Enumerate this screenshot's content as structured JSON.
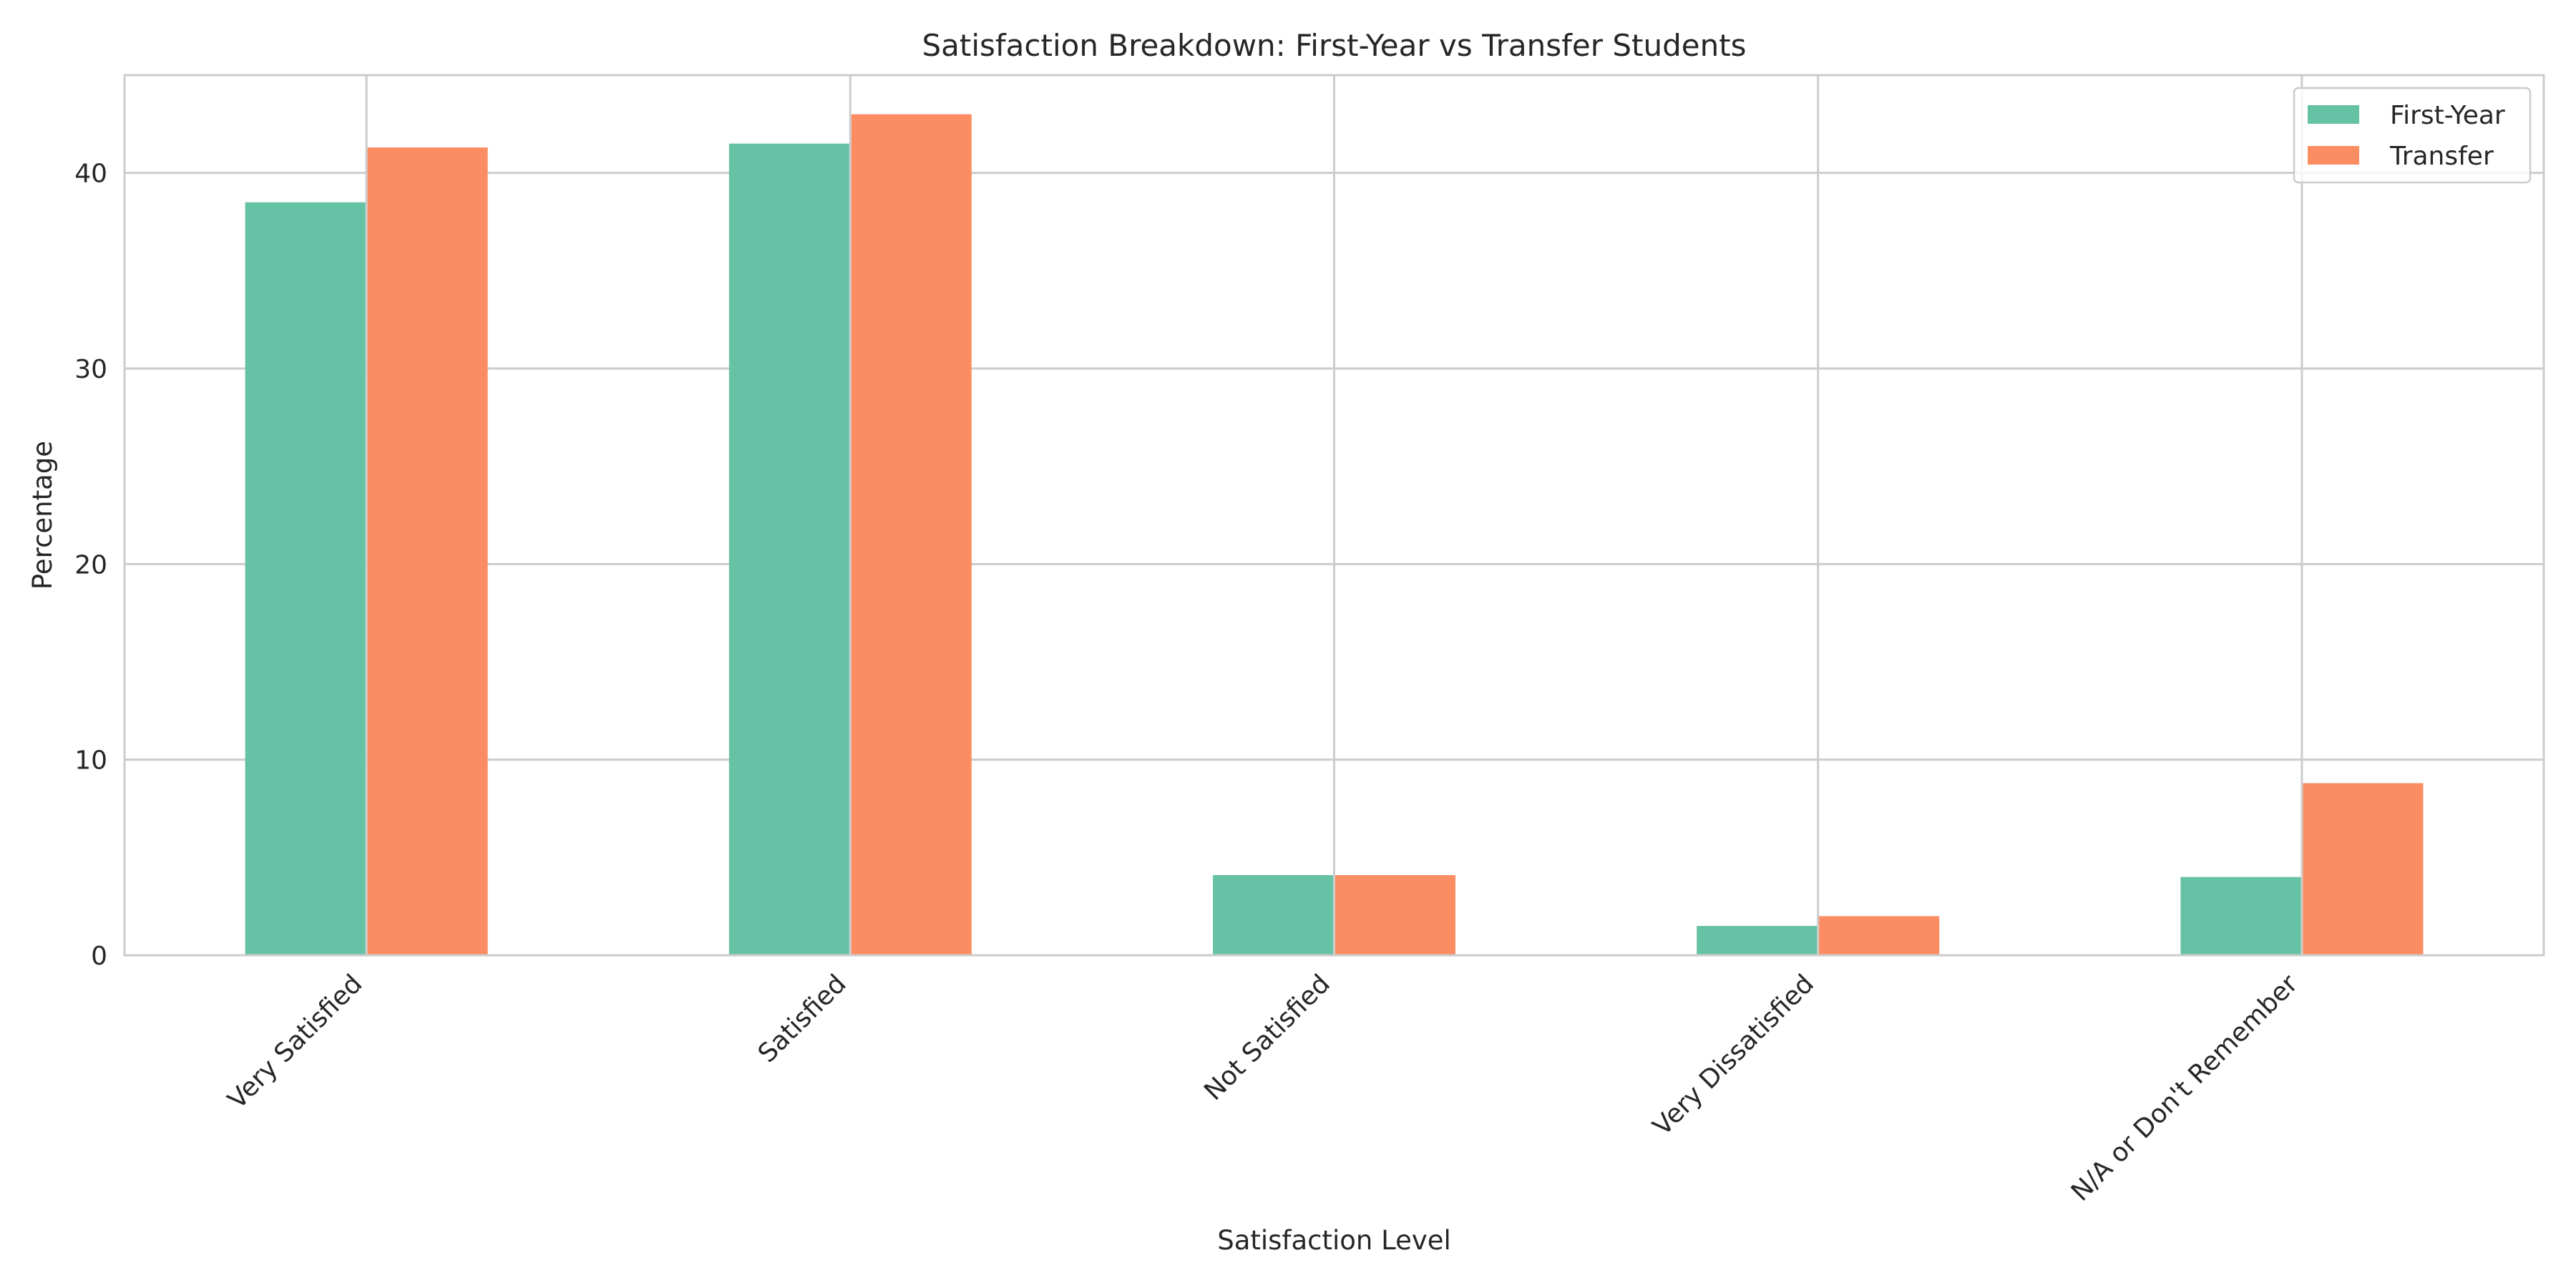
{
  "chart_data": {
    "type": "bar",
    "title": "Satisfaction Breakdown: First-Year vs Transfer Students",
    "xlabel": "Satisfaction Level",
    "ylabel": "Percentage",
    "categories": [
      "Very Satisfied",
      "Satisfied",
      "Not Satisfied",
      "Very Dissatisfied",
      "N/A or Don't Remember"
    ],
    "series": [
      {
        "name": "First-Year",
        "color": "#66c2a5",
        "values": [
          38.5,
          41.5,
          4.1,
          1.5,
          4.0
        ]
      },
      {
        "name": "Transfer",
        "color": "#fc8d62",
        "values": [
          41.3,
          43.0,
          4.1,
          2.0,
          8.8
        ]
      }
    ],
    "ylim": [
      0,
      45
    ],
    "yticks": [
      0,
      10,
      20,
      30,
      40
    ],
    "grid": true,
    "legend_position": "top-right"
  }
}
